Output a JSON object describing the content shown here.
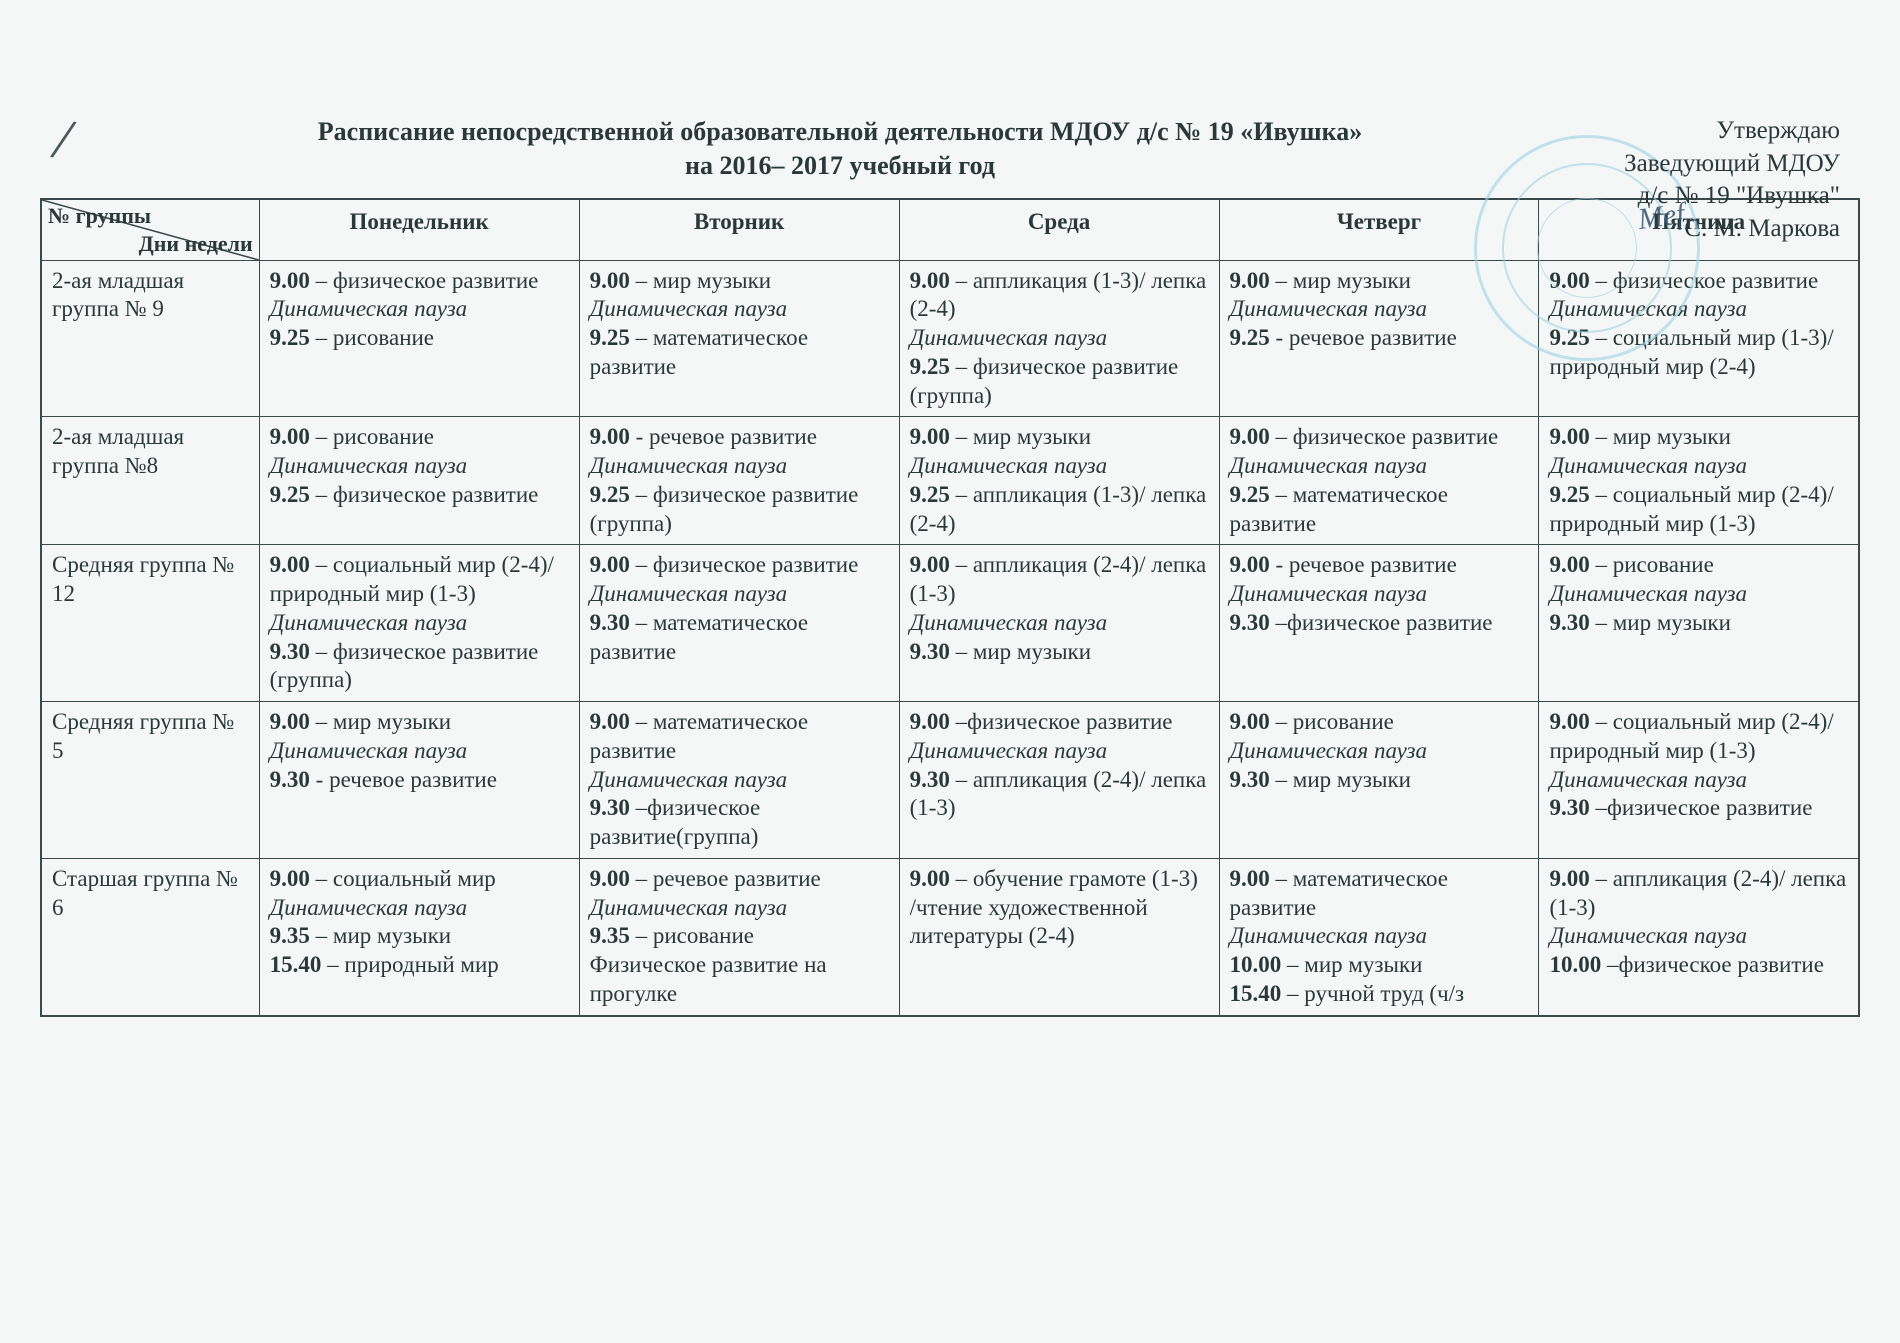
{
  "approval": {
    "line1": "Утверждаю",
    "line2": "Заведующий МДОУ",
    "line3": "д/с № 19 \"Ивушка\"",
    "line4": "С. М. Маркова"
  },
  "title": {
    "line1": "Расписание непосредственной образовательной деятельности МДОУ д/с № 19 «Ивушка»",
    "line2": "на 2016– 2017 учебный год"
  },
  "header": {
    "corner_top": "№ группы",
    "corner_bottom": "Дни недели",
    "days": [
      "Понедельник",
      "Вторник",
      "Среда",
      "Четверг",
      "Пятница"
    ]
  },
  "dyn_pause": "Динамическая пауза",
  "rows": [
    {
      "group": "2-ая младшая группа № 9",
      "cells": [
        [
          [
            "b",
            "9.00"
          ],
          [
            "t",
            " – физическое развитие"
          ],
          [
            "br"
          ],
          [
            "dp"
          ],
          [
            "br"
          ],
          [
            "b",
            "9.25"
          ],
          [
            "t",
            " – рисование"
          ]
        ],
        [
          [
            "b",
            "9.00"
          ],
          [
            "t",
            " – мир музыки"
          ],
          [
            "br"
          ],
          [
            "dp"
          ],
          [
            "br"
          ],
          [
            "b",
            "9.25"
          ],
          [
            "t",
            " – математическое развитие"
          ]
        ],
        [
          [
            "b",
            "9.00"
          ],
          [
            "t",
            " – аппликация (1-3)/ лепка (2-4)"
          ],
          [
            "br"
          ],
          [
            "dp"
          ],
          [
            "br"
          ],
          [
            "b",
            "9.25"
          ],
          [
            "t",
            " – физическое развитие (группа)"
          ]
        ],
        [
          [
            "b",
            "9.00"
          ],
          [
            "t",
            " – мир музыки"
          ],
          [
            "br"
          ],
          [
            "dp"
          ],
          [
            "br"
          ],
          [
            "b",
            "9.25"
          ],
          [
            "t",
            " - речевое развитие"
          ]
        ],
        [
          [
            "b",
            "9.00"
          ],
          [
            "t",
            " – физическое развитие"
          ],
          [
            "br"
          ],
          [
            "dp"
          ],
          [
            "br"
          ],
          [
            "b",
            "9.25"
          ],
          [
            "t",
            " – социальный мир (1-3)/природный мир (2-4)"
          ]
        ]
      ]
    },
    {
      "group": "2-ая младшая группа №8",
      "cells": [
        [
          [
            "b",
            "9.00"
          ],
          [
            "t",
            " – рисование"
          ],
          [
            "br"
          ],
          [
            "dp"
          ],
          [
            "br"
          ],
          [
            "b",
            "9.25"
          ],
          [
            "t",
            " – физическое развитие"
          ]
        ],
        [
          [
            "b",
            "9.00"
          ],
          [
            "t",
            " - речевое развитие"
          ],
          [
            "br"
          ],
          [
            "dp"
          ],
          [
            "br"
          ],
          [
            "b",
            "9.25"
          ],
          [
            "t",
            " – физическое развитие (группа)"
          ]
        ],
        [
          [
            "b",
            "9.00"
          ],
          [
            "t",
            " – мир музыки"
          ],
          [
            "br"
          ],
          [
            "dp"
          ],
          [
            "br"
          ],
          [
            "b",
            "9.25"
          ],
          [
            "t",
            " – аппликация (1-3)/ лепка (2-4)"
          ]
        ],
        [
          [
            "b",
            "9.00"
          ],
          [
            "t",
            " – физическое развитие"
          ],
          [
            "br"
          ],
          [
            "dp"
          ],
          [
            "br"
          ],
          [
            "b",
            "9.25"
          ],
          [
            "t",
            " – математическое развитие"
          ]
        ],
        [
          [
            "b",
            "9.00"
          ],
          [
            "t",
            " – мир музыки"
          ],
          [
            "br"
          ],
          [
            "dp"
          ],
          [
            "br"
          ],
          [
            "b",
            "9.25"
          ],
          [
            "t",
            " – социальный мир (2-4)/природный мир (1-3)"
          ]
        ]
      ]
    },
    {
      "group": "Средняя группа № 12",
      "cells": [
        [
          [
            "b",
            "9.00"
          ],
          [
            "t",
            " – социальный мир (2-4)/природный мир (1-3)"
          ],
          [
            "br"
          ],
          [
            "dp"
          ],
          [
            "br"
          ],
          [
            "b",
            "9.30"
          ],
          [
            "t",
            " – физическое развитие (группа)"
          ]
        ],
        [
          [
            "b",
            "9.00"
          ],
          [
            "t",
            " – физическое развитие"
          ],
          [
            "br"
          ],
          [
            "dp"
          ],
          [
            "br"
          ],
          [
            "b",
            "9.30"
          ],
          [
            "t",
            " – математическое развитие"
          ]
        ],
        [
          [
            "b",
            "9.00"
          ],
          [
            "t",
            " – аппликация (2-4)/ лепка (1-3)"
          ],
          [
            "br"
          ],
          [
            "dp"
          ],
          [
            "br"
          ],
          [
            "b",
            "9.30"
          ],
          [
            "t",
            " – мир музыки"
          ]
        ],
        [
          [
            "b",
            "9.00"
          ],
          [
            "t",
            " - речевое развитие"
          ],
          [
            "br"
          ],
          [
            "dp"
          ],
          [
            "br"
          ],
          [
            "b",
            "9.30"
          ],
          [
            "t",
            " –физическое развитие"
          ]
        ],
        [
          [
            "b",
            "9.00"
          ],
          [
            "t",
            " – рисование"
          ],
          [
            "br"
          ],
          [
            "dp"
          ],
          [
            "br"
          ],
          [
            "b",
            "9.30"
          ],
          [
            "t",
            " – мир музыки"
          ]
        ]
      ]
    },
    {
      "group": "Средняя группа № 5",
      "cells": [
        [
          [
            "b",
            "9.00"
          ],
          [
            "t",
            " – мир музыки"
          ],
          [
            "br"
          ],
          [
            "dp"
          ],
          [
            "br"
          ],
          [
            "b",
            "9.30"
          ],
          [
            "t",
            " - речевое развитие"
          ]
        ],
        [
          [
            "b",
            "9.00"
          ],
          [
            "t",
            " –  математическое развитие"
          ],
          [
            "br"
          ],
          [
            "dp"
          ],
          [
            "br"
          ],
          [
            "b",
            "9.30"
          ],
          [
            "t",
            " –физическое развитие(группа)"
          ]
        ],
        [
          [
            "b",
            "9.00"
          ],
          [
            "t",
            " –физическое развитие"
          ],
          [
            "br"
          ],
          [
            "dp"
          ],
          [
            "br"
          ],
          [
            "b",
            "9.30"
          ],
          [
            "t",
            " – аппликация (2-4)/ лепка (1-3)"
          ]
        ],
        [
          [
            "b",
            "9.00"
          ],
          [
            "t",
            " – рисование"
          ],
          [
            "br"
          ],
          [
            "dp"
          ],
          [
            "br"
          ],
          [
            "b",
            "9.30"
          ],
          [
            "t",
            " – мир музыки"
          ]
        ],
        [
          [
            "b",
            "9.00"
          ],
          [
            "t",
            " – социальный мир (2-4)/природный мир (1-3)"
          ],
          [
            "br"
          ],
          [
            "dp"
          ],
          [
            "br"
          ],
          [
            "b",
            "9.30"
          ],
          [
            "t",
            " –физическое развитие"
          ]
        ]
      ]
    },
    {
      "group": "Старшая группа № 6",
      "cells": [
        [
          [
            "b",
            "9.00"
          ],
          [
            "t",
            " – социальный мир"
          ],
          [
            "br"
          ],
          [
            "dp"
          ],
          [
            "br"
          ],
          [
            "b",
            "9.35"
          ],
          [
            "t",
            " – мир музыки"
          ],
          [
            "br"
          ],
          [
            "b",
            "15.40"
          ],
          [
            "t",
            " – природный мир"
          ]
        ],
        [
          [
            "b",
            "9.00"
          ],
          [
            "t",
            " – речевое развитие"
          ],
          [
            "br"
          ],
          [
            "dp"
          ],
          [
            "br"
          ],
          [
            "b",
            "9.35"
          ],
          [
            "t",
            " – рисование"
          ],
          [
            "br"
          ],
          [
            "t",
            "Физическое развитие на прогулке"
          ]
        ],
        [
          [
            "b",
            "9.00"
          ],
          [
            "t",
            " – обучение грамоте (1-3) /чтение художественной литературы (2-4)"
          ]
        ],
        [
          [
            "b",
            "9.00"
          ],
          [
            "t",
            " –  математическое развитие"
          ],
          [
            "br"
          ],
          [
            "dp"
          ],
          [
            "br"
          ],
          [
            "b",
            "10.00"
          ],
          [
            "t",
            " – мир музыки"
          ],
          [
            "br"
          ],
          [
            "b",
            "15.40"
          ],
          [
            "t",
            " – ручной труд (ч/з"
          ]
        ],
        [
          [
            "b",
            "9.00"
          ],
          [
            "t",
            " – аппликация (2-4)/ лепка (1-3)"
          ],
          [
            "br"
          ],
          [
            "dp"
          ],
          [
            "br"
          ],
          [
            "b",
            "10.00"
          ],
          [
            "t",
            " –физическое развитие"
          ]
        ]
      ]
    }
  ],
  "colors": {
    "text": "#2a3838",
    "border": "#3a4a4a",
    "background": "#f5f7f6",
    "stamp": "#9dd3e6"
  }
}
